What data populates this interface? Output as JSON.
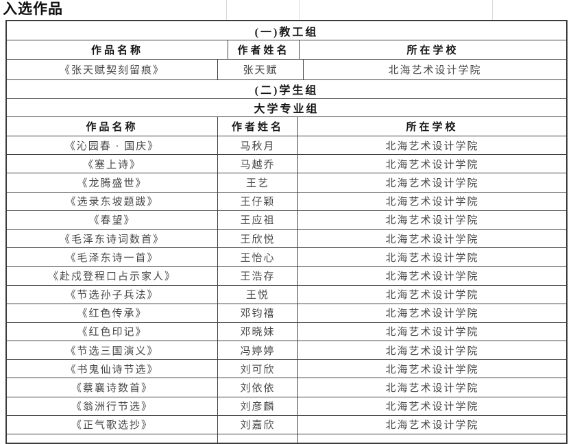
{
  "page_title": "入选作品",
  "columns": {
    "work": "作品名称",
    "author": "作者姓名",
    "school": "所在学校"
  },
  "sections": {
    "faculty": {
      "title": "(一)教工组",
      "rows": [
        {
          "work": "《张天赋契刻留痕》",
          "author": "张天赋",
          "school": "北海艺术设计学院"
        }
      ]
    },
    "student": {
      "title": "(二)学生组",
      "subtitle": "大学专业组",
      "rows": [
        {
          "work": "《沁园春 · 国庆》",
          "author": "马秋月",
          "school": "北海艺术设计学院"
        },
        {
          "work": "《塞上诗》",
          "author": "马越乔",
          "school": "北海艺术设计学院"
        },
        {
          "work": "《龙腾盛世》",
          "author": "王艺",
          "school": "北海艺术设计学院"
        },
        {
          "work": "《选录东坡题跋》",
          "author": "王仔颖",
          "school": "北海艺术设计学院"
        },
        {
          "work": "《春望》",
          "author": "王应祖",
          "school": "北海艺术设计学院"
        },
        {
          "work": "《毛泽东诗词数首》",
          "author": "王欣悦",
          "school": "北海艺术设计学院"
        },
        {
          "work": "《毛泽东诗一首》",
          "author": "王怡心",
          "school": "北海艺术设计学院"
        },
        {
          "work": "《赴戍登程口占示家人》",
          "author": "王浩存",
          "school": "北海艺术设计学院"
        },
        {
          "work": "《节选孙子兵法》",
          "author": "王悦",
          "school": "北海艺术设计学院"
        },
        {
          "work": "《红色传承》",
          "author": "邓钧禧",
          "school": "北海艺术设计学院"
        },
        {
          "work": "《红色印记》",
          "author": "邓晓妹",
          "school": "北海艺术设计学院"
        },
        {
          "work": "《节选三国演义》",
          "author": "冯婷婷",
          "school": "北海艺术设计学院"
        },
        {
          "work": "《书鬼仙诗节选》",
          "author": "刘可欣",
          "school": "北海艺术设计学院"
        },
        {
          "work": "《蔡襄诗数首》",
          "author": "刘依依",
          "school": "北海艺术设计学院"
        },
        {
          "work": "《翁洲行节选》",
          "author": "刘彦麟",
          "school": "北海艺术设计学院"
        },
        {
          "work": "《正气歌选抄》",
          "author": "刘嘉欣",
          "school": "北海艺术设计学院"
        }
      ]
    }
  }
}
